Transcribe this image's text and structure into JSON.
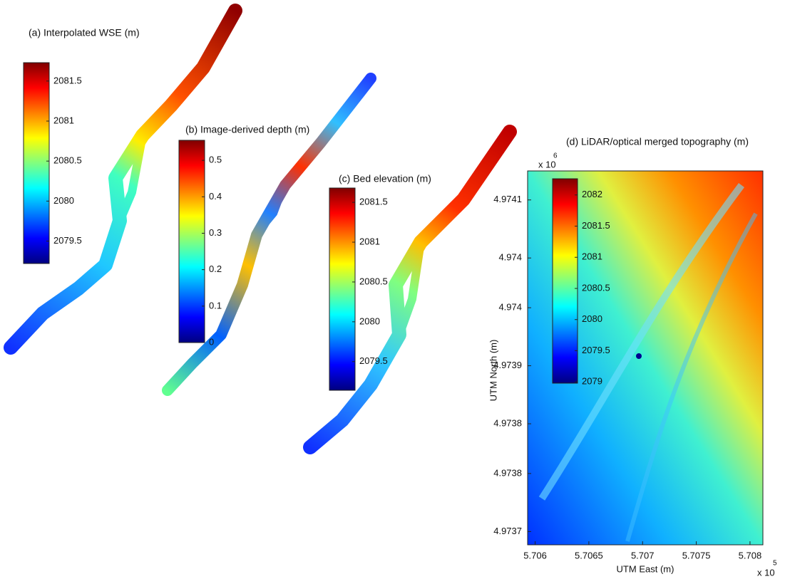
{
  "panels": [
    {
      "title": "(a) Interpolated WSE (m)",
      "colorbar": {
        "lim": [
          2079.22,
          2081.73
        ],
        "ticks": [
          2079.5,
          2080,
          2080.5,
          2081,
          2081.5
        ]
      }
    },
    {
      "title": "(b) Image-derived depth (m)",
      "colorbar": {
        "lim": [
          0,
          0.555
        ],
        "ticks": [
          0,
          0.1,
          0.2,
          0.3,
          0.4,
          0.5
        ]
      }
    },
    {
      "title": "(c) Bed elevation (m)",
      "colorbar": {
        "lim": [
          2079.14,
          2081.68
        ],
        "ticks": [
          2079.5,
          2080,
          2080.5,
          2081,
          2081.5
        ]
      }
    },
    {
      "title": "(d) LiDAR/optical merged topography (m)",
      "colorbar": {
        "lim": [
          2078.98,
          2082.26
        ],
        "ticks": [
          2079,
          2079.5,
          2080,
          2080.5,
          2081,
          2081.5,
          2082
        ]
      },
      "axes": {
        "xlabel": "UTM East (m)",
        "ylabel": "UTM North (m)",
        "xlim": [
          5.70593,
          5.70812
        ],
        "xticks": [
          5.706,
          5.7065,
          5.707,
          5.7075,
          5.708
        ],
        "ylim": [
          4.973684,
          4.974135
        ],
        "yticks": [
          {
            "value": 4.9737,
            "label": "4.9737"
          },
          {
            "value": 4.97377,
            "label": "4.9738"
          },
          {
            "value": 4.97383,
            "label": "4.9738"
          },
          {
            "value": 4.9739,
            "label": "4.9739"
          },
          {
            "value": 4.97397,
            "label": "4.974"
          },
          {
            "value": 4.97403,
            "label": "4.974"
          },
          {
            "value": 4.9741,
            "label": "4.9741"
          }
        ],
        "x_exponent": {
          "base": "x 10",
          "power": "5"
        },
        "y_exponent": {
          "base": "x 10",
          "power": "6"
        }
      }
    }
  ]
}
